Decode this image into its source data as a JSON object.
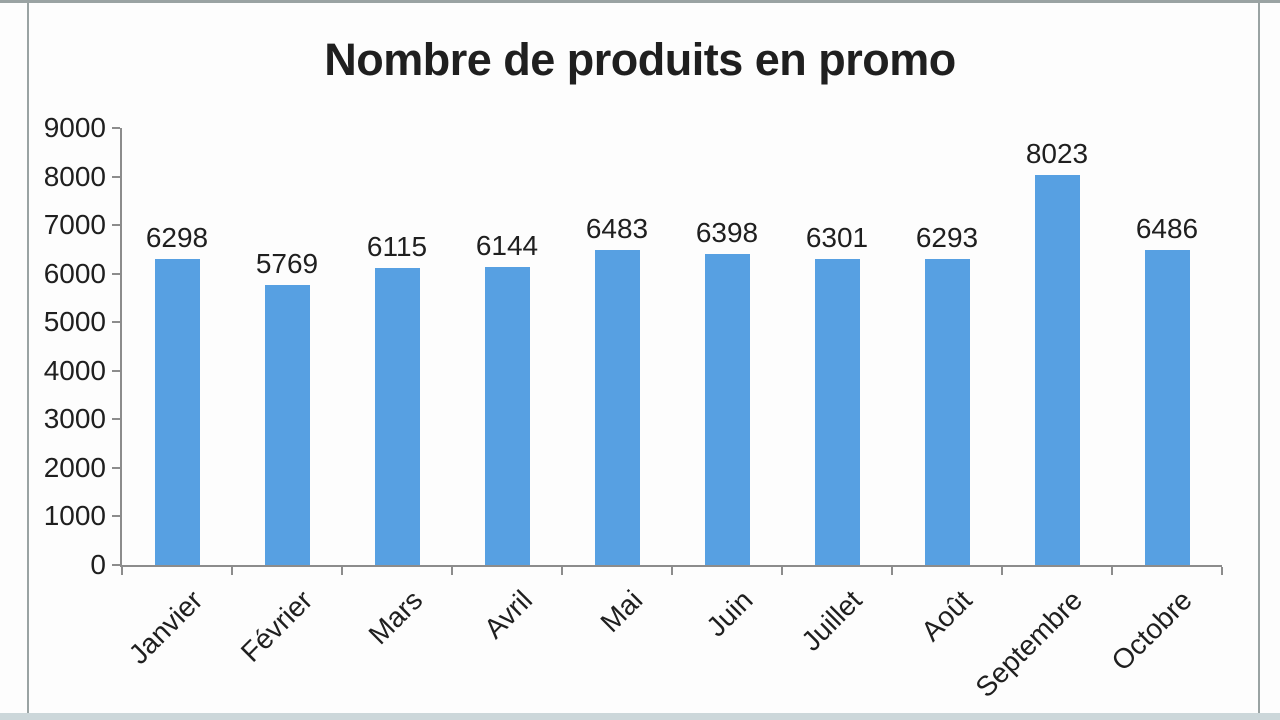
{
  "frame": {
    "background": "#fdfdfd",
    "border_color": "#9aa3a3",
    "bottom_strip_color": "#ccd7da"
  },
  "chart_data": {
    "type": "bar",
    "title": "Nombre de produits en promo",
    "categories": [
      "Janvier",
      "Février",
      "Mars",
      "Avril",
      "Mai",
      "Juin",
      "Juillet",
      "Août",
      "Septembre",
      "Octobre"
    ],
    "values": [
      6298,
      5769,
      6115,
      6144,
      6483,
      6398,
      6301,
      6293,
      8023,
      6486
    ],
    "ylim": [
      0,
      9000
    ],
    "ytick_step": 1000,
    "ytick_labels": [
      "0",
      "1000",
      "2000",
      "3000",
      "4000",
      "5000",
      "6000",
      "7000",
      "8000",
      "9000"
    ],
    "xlabel": "",
    "ylabel": "",
    "grid": false,
    "legend": false,
    "data_labels": true,
    "x_label_rotation_deg": -45,
    "bar_color": "#57a0e2",
    "axis_color": "#8c8c8c",
    "text_color": "#1f1f1f"
  }
}
